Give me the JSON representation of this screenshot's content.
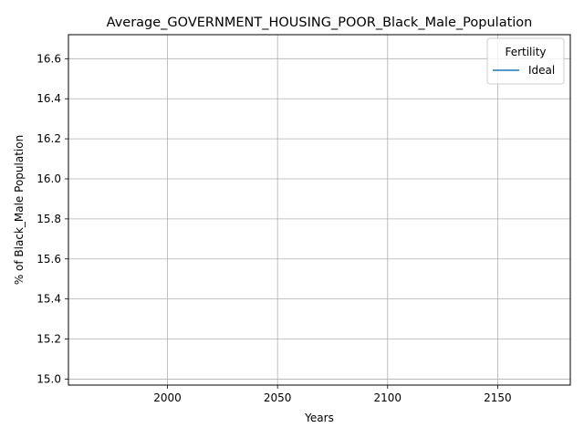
{
  "chart_data": {
    "type": "line",
    "title": "Average_GOVERNMENT_HOUSING_POOR_Black_Male_Population",
    "xlabel": "Years",
    "ylabel": "% of Black_Male Population",
    "xlim": [
      1955,
      2183
    ],
    "ylim": [
      14.97,
      16.72
    ],
    "x_ticks": [
      2000,
      2050,
      2100,
      2150
    ],
    "y_ticks": [
      15.0,
      15.2,
      15.4,
      15.6,
      15.8,
      16.0,
      16.2,
      16.4,
      16.6
    ],
    "x_tick_labels": [
      "2000",
      "2050",
      "2100",
      "2150"
    ],
    "y_tick_labels": [
      "15.0",
      "15.2",
      "15.4",
      "15.6",
      "15.8",
      "16.0",
      "16.2",
      "16.4",
      "16.6"
    ],
    "grid": true,
    "legend": {
      "title": "Fertility",
      "placement": "top-right",
      "entries": [
        "Ideal"
      ]
    },
    "series": [
      {
        "name": "Ideal",
        "color": "#1f77b4",
        "x": [],
        "y": []
      }
    ]
  }
}
